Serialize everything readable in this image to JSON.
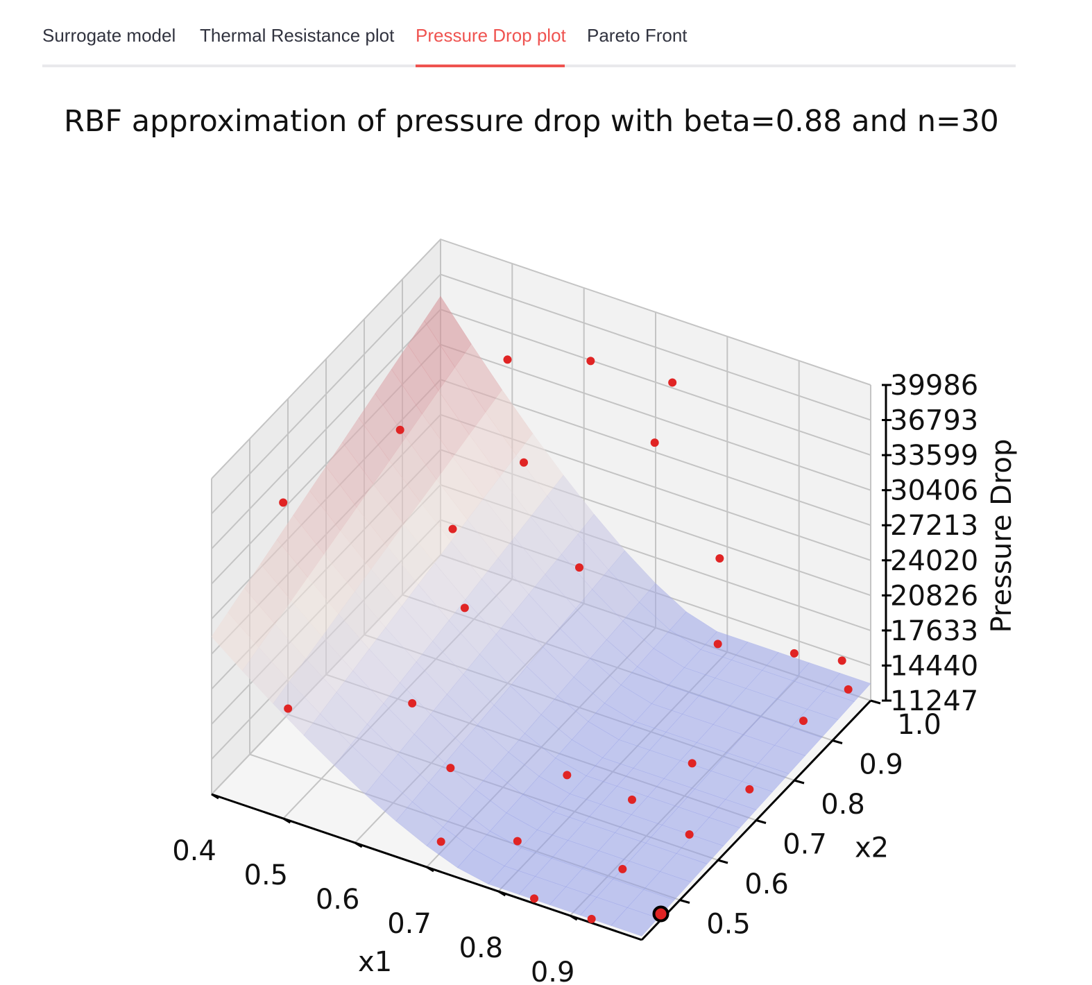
{
  "tabs": [
    {
      "label": "Surrogate model",
      "active": false
    },
    {
      "label": "Thermal Resistance plot",
      "active": false
    },
    {
      "label": "Pressure Drop plot",
      "active": true
    },
    {
      "label": "Pareto Front",
      "active": false
    }
  ],
  "colors": {
    "active_tab": "#ef5350",
    "tab_text": "#31333f",
    "points": "#e02424",
    "surface_high": "#c0485a",
    "surface_mid": "#f0c4b0",
    "surface_low": "#8e9ae8"
  },
  "chart_data": {
    "type": "surface3d",
    "title": "RBF approximation of pressure drop with beta=0.88 and n=30",
    "xlabel": "x1",
    "ylabel": "x2",
    "zlabel": "Pressure Drop",
    "x_ticks": [
      "0.4",
      "0.5",
      "0.6",
      "0.7",
      "0.8",
      "0.9"
    ],
    "y_ticks": [
      "0.5",
      "0.6",
      "0.7",
      "0.8",
      "0.9",
      "1.0"
    ],
    "z_ticks": [
      "11247",
      "14440",
      "17633",
      "20826",
      "24020",
      "27213",
      "30406",
      "33599",
      "36793",
      "39986"
    ],
    "xlim": [
      0.4,
      1.0
    ],
    "ylim": [
      0.4,
      1.0
    ],
    "zlim": [
      11247,
      39986
    ],
    "grid": true,
    "highlighted_point": {
      "x": 1.0,
      "y": 0.45,
      "z": 11800
    },
    "points": [
      {
        "x": 0.42,
        "y": 0.55,
        "z": 32800
      },
      {
        "x": 0.45,
        "y": 0.8,
        "z": 31000
      },
      {
        "x": 0.52,
        "y": 0.95,
        "z": 33500
      },
      {
        "x": 0.58,
        "y": 0.88,
        "z": 28000
      },
      {
        "x": 0.62,
        "y": 0.98,
        "z": 34500
      },
      {
        "x": 0.48,
        "y": 0.45,
        "z": 19000
      },
      {
        "x": 0.62,
        "y": 0.65,
        "z": 24000
      },
      {
        "x": 0.75,
        "y": 0.95,
        "z": 36500
      },
      {
        "x": 0.68,
        "y": 0.5,
        "z": 16200
      },
      {
        "x": 0.8,
        "y": 0.58,
        "z": 15300
      },
      {
        "x": 0.84,
        "y": 0.9,
        "z": 16500
      },
      {
        "x": 0.92,
        "y": 0.95,
        "z": 15600
      },
      {
        "x": 0.8,
        "y": 0.98,
        "z": 20500
      },
      {
        "x": 0.72,
        "y": 0.4,
        "z": 14000
      },
      {
        "x": 0.8,
        "y": 0.45,
        "z": 14000
      },
      {
        "x": 0.88,
        "y": 0.6,
        "z": 14100
      },
      {
        "x": 0.9,
        "y": 0.72,
        "z": 13500
      },
      {
        "x": 0.85,
        "y": 0.4,
        "z": 11700
      },
      {
        "x": 0.92,
        "y": 0.5,
        "z": 12300
      },
      {
        "x": 0.96,
        "y": 0.6,
        "z": 12700
      },
      {
        "x": 0.98,
        "y": 0.72,
        "z": 12900
      },
      {
        "x": 0.97,
        "y": 0.88,
        "z": 13100
      },
      {
        "x": 0.96,
        "y": 1.0,
        "z": 14000
      },
      {
        "x": 0.93,
        "y": 0.4,
        "z": 11600
      },
      {
        "x": 0.6,
        "y": 0.55,
        "z": 18500
      },
      {
        "x": 0.7,
        "y": 0.8,
        "z": 24000
      },
      {
        "x": 0.55,
        "y": 0.75,
        "z": 26000
      },
      {
        "x": 0.72,
        "y": 0.96,
        "z": 30000
      },
      {
        "x": 0.99,
        "y": 0.96,
        "z": 13500
      }
    ]
  }
}
